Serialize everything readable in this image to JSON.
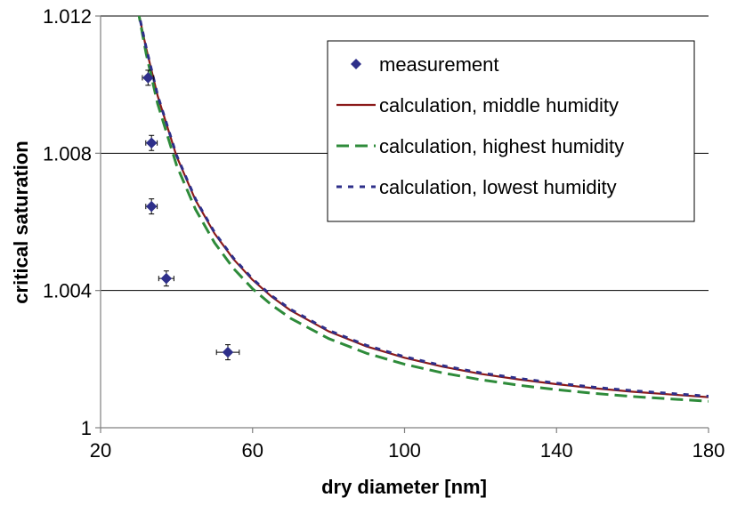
{
  "chart_data": {
    "type": "scatter",
    "title": "",
    "xlabel": "dry diameter [nm]",
    "ylabel": "critical saturation",
    "xlim": [
      20,
      180
    ],
    "ylim": [
      1.0,
      1.012
    ],
    "x_ticks": [
      {
        "value": 20,
        "label": "20"
      },
      {
        "value": 60,
        "label": "60"
      },
      {
        "value": 100,
        "label": "100"
      },
      {
        "value": 140,
        "label": "140"
      },
      {
        "value": 180,
        "label": "180"
      }
    ],
    "y_ticks": [
      {
        "value": 1.0,
        "label": "1"
      },
      {
        "value": 1.004,
        "label": "1.004"
      },
      {
        "value": 1.008,
        "label": "1.008"
      },
      {
        "value": 1.012,
        "label": "1.012"
      }
    ],
    "grid": {
      "horizontal": true,
      "vertical": false
    },
    "legend_position": "top-right",
    "series": [
      {
        "name": "measurement",
        "kind": "scatter",
        "marker": "diamond",
        "color": "#2E2F8A",
        "points": [
          {
            "x": 32.5,
            "y": 1.0102,
            "x_err": 1.5,
            "y_err": 0.00022
          },
          {
            "x": 33.4,
            "y": 1.0083,
            "x_err": 1.5,
            "y_err": 0.00022
          },
          {
            "x": 33.4,
            "y": 1.00645,
            "x_err": 1.5,
            "y_err": 0.00022
          },
          {
            "x": 37.3,
            "y": 1.00435,
            "x_err": 2.0,
            "y_err": 0.00022
          },
          {
            "x": 53.5,
            "y": 1.0022,
            "x_err": 3.0,
            "y_err": 0.00022
          }
        ]
      },
      {
        "name": "calculation, middle humidity",
        "kind": "line",
        "color": "#8B1A1A",
        "dash": "solid",
        "points": [
          [
            29.8,
            1.0122
          ],
          [
            32,
            1.01106
          ],
          [
            35,
            1.00968
          ],
          [
            40,
            1.00791
          ],
          [
            45,
            1.00663
          ],
          [
            50,
            1.00566
          ],
          [
            55,
            1.00491
          ],
          [
            60,
            1.00431
          ],
          [
            65,
            1.00382
          ],
          [
            70,
            1.00342
          ],
          [
            80,
            1.00281
          ],
          [
            90,
            1.00237
          ],
          [
            100,
            1.00204
          ],
          [
            110,
            1.00178
          ],
          [
            120,
            1.00157
          ],
          [
            130,
            1.00141
          ],
          [
            140,
            1.00127
          ],
          [
            150,
            1.00115
          ],
          [
            160,
            1.00105
          ],
          [
            170,
            1.00097
          ],
          [
            180,
            1.00089
          ]
        ]
      },
      {
        "name": "calculation, highest humidity",
        "kind": "line",
        "color": "#2E8B3A",
        "dash": "long-dash",
        "points": [
          [
            29.8,
            1.0122
          ],
          [
            32,
            1.0109
          ],
          [
            35,
            1.00945
          ],
          [
            40,
            1.00765
          ],
          [
            45,
            1.00636
          ],
          [
            50,
            1.00539
          ],
          [
            55,
            1.00464
          ],
          [
            60,
            1.00405
          ],
          [
            65,
            1.00358
          ],
          [
            70,
            1.00319
          ],
          [
            80,
            1.0026
          ],
          [
            90,
            1.00217
          ],
          [
            100,
            1.00185
          ],
          [
            110,
            1.0016
          ],
          [
            120,
            1.0014
          ],
          [
            130,
            1.00124
          ],
          [
            140,
            1.00111
          ],
          [
            150,
            1.001
          ],
          [
            160,
            1.00091
          ],
          [
            170,
            1.00084
          ],
          [
            180,
            1.00077
          ]
        ]
      },
      {
        "name": "calculation, lowest humidity",
        "kind": "line",
        "color": "#2E2F8A",
        "dash": "short-dash",
        "points": [
          [
            29.8,
            1.0122
          ],
          [
            32,
            1.01108
          ],
          [
            35,
            1.0097
          ],
          [
            40,
            1.00794
          ],
          [
            45,
            1.00666
          ],
          [
            50,
            1.00569
          ],
          [
            55,
            1.00494
          ],
          [
            60,
            1.00434
          ],
          [
            65,
            1.00385
          ],
          [
            70,
            1.00345
          ],
          [
            80,
            1.00284
          ],
          [
            90,
            1.0024
          ],
          [
            100,
            1.00207
          ],
          [
            110,
            1.00181
          ],
          [
            120,
            1.0016
          ],
          [
            130,
            1.00144
          ],
          [
            140,
            1.0013
          ],
          [
            150,
            1.00118
          ],
          [
            160,
            1.00108
          ],
          [
            170,
            1.001
          ],
          [
            180,
            1.00092
          ]
        ]
      }
    ]
  }
}
